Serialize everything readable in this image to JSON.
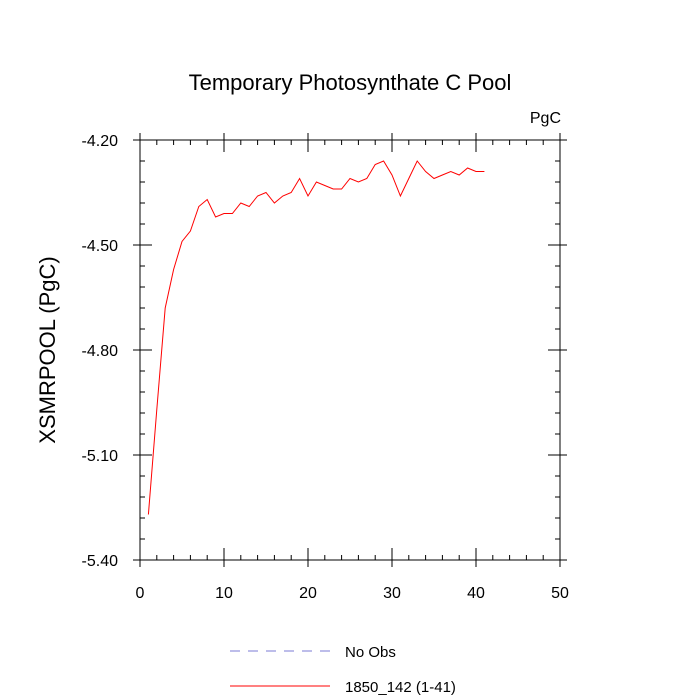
{
  "chart_data": {
    "type": "line",
    "title": "Temporary Photosynthate C Pool",
    "units_label": "PgC",
    "xlabel": "",
    "ylabel": "XSMRPOOL  (PgC)",
    "xlim": [
      0,
      50
    ],
    "ylim": [
      -5.4,
      -4.2
    ],
    "xticks": [
      0,
      10,
      20,
      30,
      40,
      50
    ],
    "yticks": [
      -5.4,
      -5.1,
      -4.8,
      -4.5,
      -4.2
    ],
    "xtick_labels": [
      "0",
      "10",
      "20",
      "30",
      "40",
      "50"
    ],
    "ytick_labels": [
      "-5.40",
      "-5.10",
      "-4.80",
      "-4.50",
      "-4.20"
    ],
    "grid": false,
    "legend_position": "bottom-center",
    "series": [
      {
        "name": "No Obs",
        "color": "#7b7bd6",
        "dash": "dashed",
        "x": [],
        "values": []
      },
      {
        "name": "1850_142 (1-41)",
        "color": "#ff0000",
        "dash": "solid",
        "x": [
          1,
          2,
          3,
          4,
          5,
          6,
          7,
          8,
          9,
          10,
          11,
          12,
          13,
          14,
          15,
          16,
          17,
          18,
          19,
          20,
          21,
          22,
          23,
          24,
          25,
          26,
          27,
          28,
          29,
          30,
          31,
          32,
          33,
          34,
          35,
          36,
          37,
          38,
          39,
          40,
          41
        ],
        "values": [
          -5.27,
          -4.97,
          -4.68,
          -4.57,
          -4.49,
          -4.46,
          -4.39,
          -4.37,
          -4.42,
          -4.41,
          -4.41,
          -4.38,
          -4.39,
          -4.36,
          -4.35,
          -4.38,
          -4.36,
          -4.35,
          -4.31,
          -4.36,
          -4.32,
          -4.33,
          -4.34,
          -4.34,
          -4.31,
          -4.32,
          -4.31,
          -4.27,
          -4.26,
          -4.3,
          -4.36,
          -4.31,
          -4.26,
          -4.29,
          -4.31,
          -4.3,
          -4.29,
          -4.3,
          -4.28,
          -4.29,
          -4.29
        ]
      }
    ]
  }
}
